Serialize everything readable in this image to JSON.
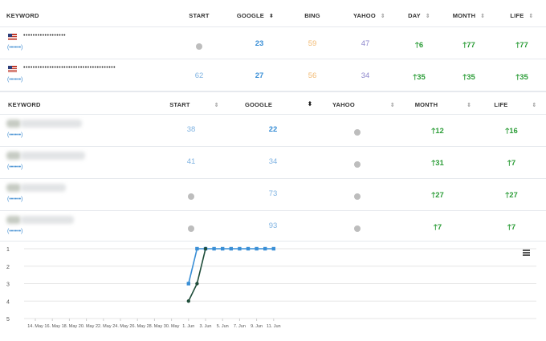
{
  "table1": {
    "headers": [
      "KEYWORD",
      "START",
      "GOOGLE",
      "BING",
      "YAHOO",
      "DAY",
      "MONTH",
      "LIFE"
    ],
    "rows": [
      {
        "keyword": "••••••••••••••••••",
        "sub": "(••••••)",
        "start": "",
        "google": "23",
        "bing": "59",
        "yahoo": "47",
        "day": "6",
        "month": "77",
        "life": "77"
      },
      {
        "keyword": "•••••••••••••••••••••••••••••••••••••••",
        "sub": "(••••••)",
        "start": "62",
        "google": "27",
        "bing": "56",
        "yahoo": "34",
        "day": "35",
        "month": "35",
        "life": "35"
      }
    ]
  },
  "table2": {
    "headers": [
      "KEYWORD",
      "START",
      "GOOGLE",
      "YAHOO",
      "MONTH",
      "LIFE"
    ],
    "rows": [
      {
        "sub": "(••••••)",
        "start": "38",
        "google": "22",
        "yahoo": "",
        "month": "12",
        "life": "16"
      },
      {
        "sub": "(••••••)",
        "start": "41",
        "google": "34",
        "yahoo": "",
        "month": "31",
        "life": "7"
      },
      {
        "sub": "(••••••)",
        "start": "",
        "google": "73",
        "yahoo": "",
        "month": "27",
        "life": "27"
      },
      {
        "sub": "(••••••)",
        "start": "",
        "google": "93",
        "yahoo": "",
        "month": "7",
        "life": "7"
      }
    ]
  },
  "chart_data": {
    "type": "line",
    "y_ticks": [
      "1",
      "2",
      "3",
      "4",
      "5"
    ],
    "x_ticks": [
      "14. May",
      "16. May",
      "18. May",
      "20. May",
      "22. May",
      "24. May",
      "26. May",
      "28. May",
      "30. May",
      "1. Jun",
      "3. Jun",
      "5. Jun",
      "7. Jun",
      "9. Jun",
      "11. Jun"
    ],
    "ylim": [
      1,
      5
    ],
    "y_reversed": true,
    "series": [
      {
        "color": "#3a8fd6",
        "marker": "square",
        "x": [
          "1. Jun",
          "2. Jun",
          "3. Jun",
          "4. Jun",
          "5. Jun",
          "6. Jun",
          "7. Jun",
          "8. Jun",
          "9. Jun",
          "10. Jun",
          "11. Jun"
        ],
        "values": [
          3,
          1,
          1,
          1,
          1,
          1,
          1,
          1,
          1,
          1,
          1
        ]
      },
      {
        "color": "#1f4d3a",
        "marker": "circle",
        "x": [
          "1. Jun",
          "2. Jun",
          "3. Jun"
        ],
        "values": [
          4,
          3,
          1
        ]
      }
    ],
    "menu_icon": "hamburger-icon"
  }
}
